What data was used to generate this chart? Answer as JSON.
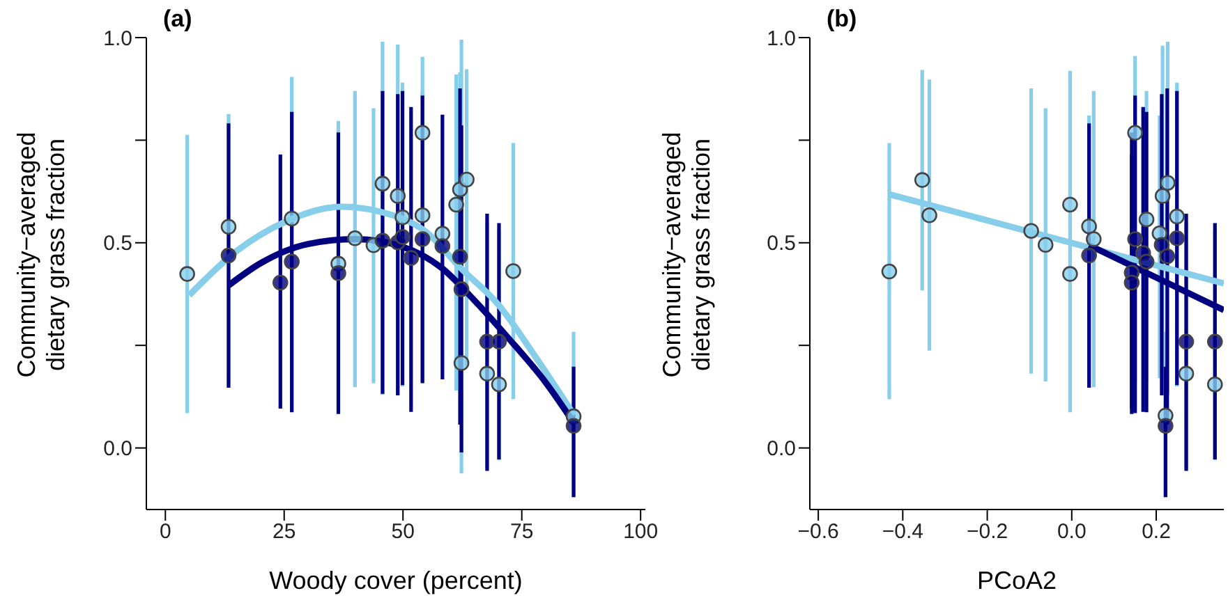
{
  "chart_data": [
    {
      "type": "scatter",
      "title": "(a)",
      "xlabel": "Woody cover (percent)",
      "ylabel": "Community−averaged dietary grass fraction",
      "xlim": [
        -4,
        101
      ],
      "xticks": [
        0,
        25,
        50,
        75,
        100
      ],
      "ylim": [
        -0.15,
        1.0
      ],
      "yticks": [
        {
          "value": 0,
          "label": "0.0"
        },
        {
          "value": 0.25,
          "label": null
        },
        {
          "value": 0.5,
          "label": "0.5"
        },
        {
          "value": 0.75,
          "label": null
        },
        {
          "value": 1,
          "label": "1.0"
        }
      ],
      "grid": false,
      "legend": false,
      "series": [
        {
          "type": "line",
          "color": "#87ceeb",
          "marker": "none",
          "x": [
            5,
            15,
            25,
            37,
            45,
            55,
            62,
            70,
            78,
            86
          ],
          "values": [
            0.372,
            0.48,
            0.55,
            0.588,
            0.576,
            0.525,
            0.44,
            0.35,
            0.22,
            0.08
          ]
        },
        {
          "type": "line",
          "color": "#000080",
          "marker": "none",
          "x": [
            13.3,
            20,
            30,
            40,
            50,
            58,
            65,
            72,
            80,
            86
          ],
          "values": [
            0.396,
            0.45,
            0.497,
            0.509,
            0.49,
            0.44,
            0.36,
            0.27,
            0.16,
            0.06
          ]
        },
        {
          "type": "scatter",
          "color": "#87ceeb",
          "marker": "circle",
          "x": [
            4.6,
            13.3,
            26.6,
            36.4,
            39.9,
            43.8,
            45.7,
            48.9,
            49.9,
            54.1,
            54.1,
            58.3,
            61.2,
            62.0,
            63.4,
            62.3,
            67.7,
            70.2,
            73.2,
            85.9
          ],
          "values": [
            0.424,
            0.539,
            0.559,
            0.449,
            0.511,
            0.494,
            0.644,
            0.614,
            0.562,
            0.768,
            0.567,
            0.522,
            0.593,
            0.63,
            0.654,
            0.207,
            0.181,
            0.155,
            0.431,
            0.077
          ],
          "errors": [
            [
              0.085,
              0.763
            ],
            [
              0.15,
              0.814
            ],
            [
              0.09,
              0.904
            ],
            [
              0.085,
              0.797
            ],
            [
              0.148,
              0.87
            ],
            [
              0.158,
              0.828
            ],
            [
              0.13,
              0.99
            ],
            [
              0.13,
              0.983
            ],
            [
              0.15,
              0.89
            ],
            [
              0.16,
              0.953
            ],
            [
              0.16,
              0.87
            ],
            null,
            [
              0.14,
              0.91
            ],
            [
              0.2,
              0.915
            ],
            [
              0.2,
              0.923
            ],
            [
              -0.062,
              0.995
            ],
            [
              -0.05,
              0.55
            ],
            [
              -0.03,
              0.53
            ],
            [
              0.119,
              0.743
            ],
            [
              -0.12,
              0.283
            ]
          ]
        },
        {
          "type": "scatter",
          "color": "#000080",
          "marker": "circle",
          "x": [
            13.3,
            24.2,
            26.6,
            36.4,
            45.7,
            48.9,
            49.9,
            51.7,
            54.1,
            58.3,
            62.0,
            62.3,
            67.7,
            70.2,
            85.9
          ],
          "values": [
            0.469,
            0.403,
            0.454,
            0.426,
            0.505,
            0.501,
            0.514,
            0.463,
            0.509,
            0.492,
            0.466,
            0.387,
            0.259,
            0.259,
            0.054
          ],
          "errors": [
            [
              0.147,
              0.791
            ],
            [
              0.096,
              0.715
            ],
            [
              0.087,
              0.819
            ],
            [
              0.083,
              0.769
            ],
            [
              0.132,
              0.87
            ],
            [
              0.128,
              0.862
            ],
            [
              0.153,
              0.87
            ],
            [
              0.088,
              0.831
            ],
            [
              0.158,
              0.859
            ],
            [
              0.167,
              0.812
            ],
            [
              0.057,
              0.876
            ],
            [
              -0.011,
              0.786
            ],
            [
              -0.056,
              0.571
            ],
            [
              -0.028,
              0.548
            ],
            [
              -0.12,
              0.198
            ]
          ]
        }
      ]
    },
    {
      "type": "scatter",
      "title": "(b)",
      "xlabel": "PCoA2",
      "ylabel": "Community−averaged dietary grass fraction",
      "xlim": [
        -0.62,
        0.36
      ],
      "xticks": [
        {
          "value": -0.6,
          "label": "−0.6"
        },
        {
          "value": -0.4,
          "label": "−0.4"
        },
        {
          "value": -0.2,
          "label": "−0.2"
        },
        {
          "value": 0,
          "label": "0.0"
        },
        0.2
      ],
      "ylim": [
        -0.15,
        1.0
      ],
      "yticks": [
        {
          "value": 0,
          "label": "0.0"
        },
        {
          "value": 0.25,
          "label": null
        },
        {
          "value": 0.5,
          "label": "0.5"
        },
        {
          "value": 0.75,
          "label": null
        },
        {
          "value": 1,
          "label": "1.0"
        }
      ],
      "grid": false,
      "legend": false,
      "series": [
        {
          "type": "line",
          "color": "#87ceeb",
          "marker": "none",
          "x": [
            -0.432,
            0.36
          ],
          "values": [
            0.618,
            0.401
          ]
        },
        {
          "type": "line",
          "color": "#000080",
          "marker": "none",
          "x": [
            0.041,
            0.36
          ],
          "values": [
            0.494,
            0.336
          ]
        },
        {
          "type": "scatter",
          "color": "#87ceeb",
          "marker": "circle",
          "x": [
            -0.432,
            -0.354,
            -0.337,
            -0.096,
            -0.062,
            -0.004,
            -0.004,
            0.041,
            0.052,
            0.15,
            0.177,
            0.208,
            0.215,
            0.227,
            0.249,
            0.271,
            0.339,
            0.222
          ],
          "values": [
            0.43,
            0.653,
            0.567,
            0.529,
            0.495,
            0.593,
            0.424,
            0.54,
            0.509,
            0.768,
            0.557,
            0.523,
            0.614,
            0.646,
            0.564,
            0.181,
            0.155,
            0.079
          ],
          "errors": [
            [
              0.119,
              0.743
            ],
            [
              0.384,
              0.921
            ],
            [
              0.237,
              0.898
            ],
            [
              0.181,
              0.876
            ],
            [
              0.162,
              0.828
            ],
            [
              0.087,
              0.919
            ],
            null,
            [
              0.15,
              0.81
            ],
            [
              0.148,
              0.87
            ],
            [
              0.16,
              0.955
            ],
            [
              0.16,
              0.87
            ],
            [
              0.17,
              0.81
            ],
            [
              0.13,
              0.98
            ],
            [
              0.13,
              0.99
            ],
            [
              0.15,
              0.89
            ],
            [
              -0.05,
              0.55
            ],
            [
              -0.03,
              0.53
            ],
            [
              -0.12,
              0.283
            ]
          ]
        },
        {
          "type": "scatter",
          "color": "#000080",
          "marker": "circle",
          "x": [
            0.041,
            0.15,
            0.142,
            0.142,
            0.169,
            0.177,
            0.213,
            0.226,
            0.249,
            0.271,
            0.339,
            0.222
          ],
          "values": [
            0.469,
            0.509,
            0.427,
            0.403,
            0.475,
            0.454,
            0.495,
            0.467,
            0.511,
            0.259,
            0.259,
            0.054
          ],
          "errors": [
            [
              0.147,
              0.791
            ],
            [
              0.085,
              0.859
            ],
            [
              0.083,
              0.769
            ],
            [
              0.096,
              0.715
            ],
            [
              0.088,
              0.831
            ],
            [
              0.087,
              0.819
            ],
            [
              0.128,
              0.862
            ],
            [
              0.057,
              0.876
            ],
            [
              0.153,
              0.87
            ],
            [
              -0.056,
              0.571
            ],
            [
              -0.028,
              0.548
            ],
            [
              -0.12,
              0.198
            ]
          ]
        }
      ]
    }
  ]
}
